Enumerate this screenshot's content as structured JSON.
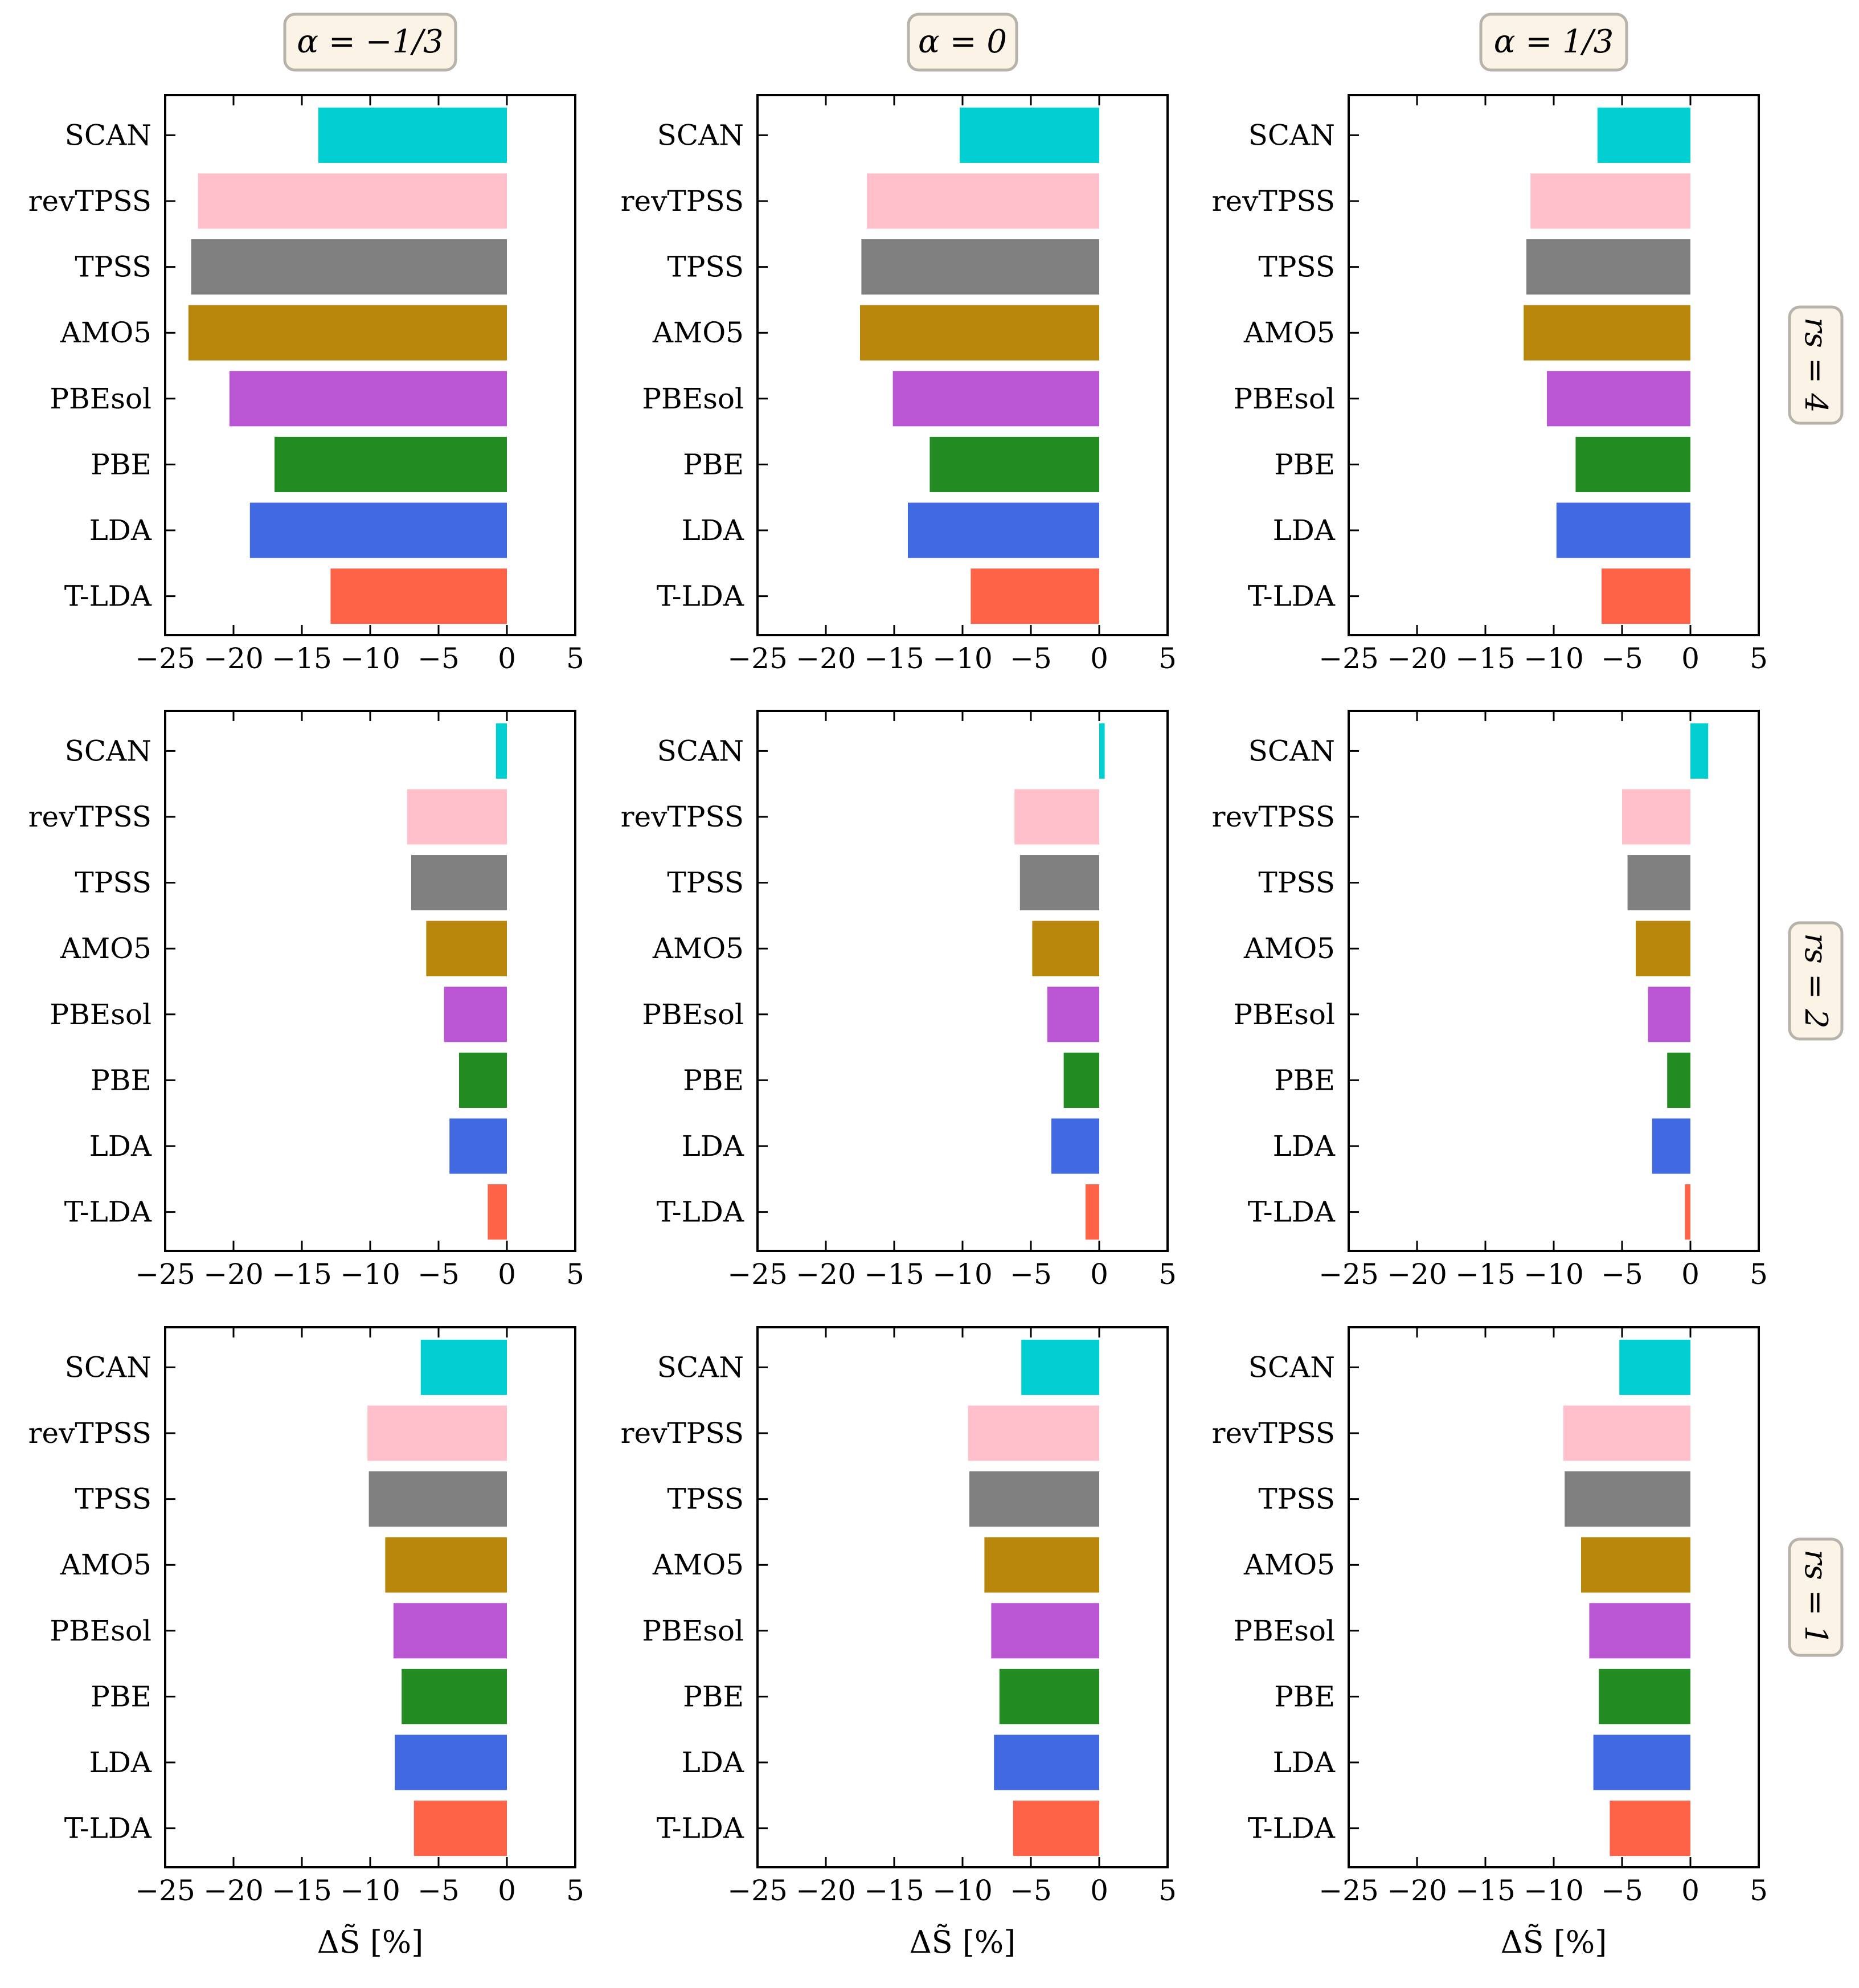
{
  "chart_data": {
    "type": "bar",
    "orientation": "horizontal",
    "layout": "3x3 grid of subplots",
    "columns": [
      {
        "title": "α = −1/3"
      },
      {
        "title": "α = 0"
      },
      {
        "title": "α = 1/3"
      }
    ],
    "rows": [
      {
        "label": "r_s = 4",
        "display": "rs = 4"
      },
      {
        "label": "r_s = 2",
        "display": "rs = 2"
      },
      {
        "label": "r_s = 1",
        "display": "rs = 1"
      }
    ],
    "categories": [
      "SCAN",
      "revTPSS",
      "TPSS",
      "AMO5",
      "PBEsol",
      "PBE",
      "LDA",
      "T-LDA"
    ],
    "colors": {
      "SCAN": "#00ced1",
      "revTPSS": "#ffc0cb",
      "TPSS": "#808080",
      "AMO5": "#b8860b",
      "PBEsol": "#ba55d3",
      "PBE": "#228b22",
      "LDA": "#4169e1",
      "T-LDA": "#ff6347"
    },
    "xlim": [
      -25,
      5
    ],
    "xticks": [
      -25,
      -20,
      -15,
      -10,
      -5,
      0,
      5
    ],
    "xtick_labels": [
      "−25",
      "−20",
      "−15",
      "−10",
      "−5",
      "0",
      "5"
    ],
    "xlabel": "ΔS̃ [%]",
    "panels": [
      [
        {
          "values": [
            -13.8,
            -22.6,
            -23.1,
            -23.3,
            -20.3,
            -17.0,
            -18.8,
            -12.9
          ]
        },
        {
          "values": [
            -10.2,
            -17.0,
            -17.4,
            -17.5,
            -15.1,
            -12.4,
            -14.0,
            -9.4
          ]
        },
        {
          "values": [
            -6.8,
            -11.7,
            -12.0,
            -12.2,
            -10.5,
            -8.4,
            -9.8,
            -6.5
          ]
        }
      ],
      [
        {
          "values": [
            -0.8,
            -7.3,
            -7.0,
            -5.9,
            -4.6,
            -3.5,
            -4.2,
            -1.4
          ]
        },
        {
          "values": [
            0.4,
            -6.2,
            -5.8,
            -4.9,
            -3.8,
            -2.6,
            -3.5,
            -1.0
          ]
        },
        {
          "values": [
            1.3,
            -5.0,
            -4.6,
            -4.0,
            -3.1,
            -1.7,
            -2.8,
            -0.4
          ]
        }
      ],
      [
        {
          "values": [
            -6.3,
            -10.2,
            -10.1,
            -8.9,
            -8.3,
            -7.7,
            -8.2,
            -6.8
          ]
        },
        {
          "values": [
            -5.7,
            -9.6,
            -9.5,
            -8.4,
            -7.9,
            -7.3,
            -7.7,
            -6.3
          ]
        },
        {
          "values": [
            -5.2,
            -9.3,
            -9.2,
            -8.0,
            -7.4,
            -6.7,
            -7.1,
            -5.9
          ]
        }
      ]
    ]
  }
}
